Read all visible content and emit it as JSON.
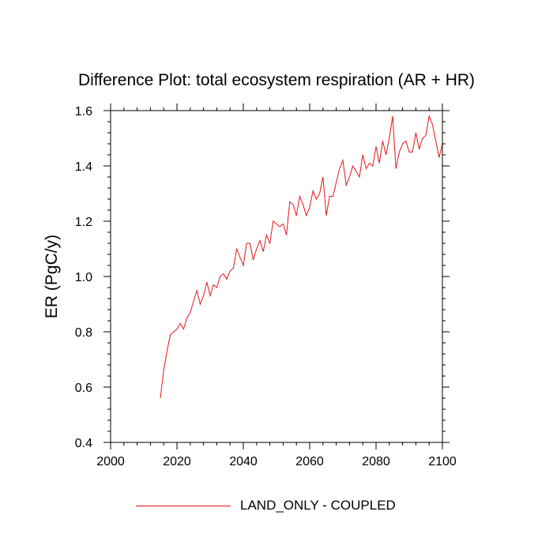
{
  "chart_data": {
    "type": "line",
    "title": "Difference Plot: total ecosystem respiration (AR + HR)",
    "xlabel": "",
    "ylabel": "ER  (PgC/y)",
    "xlim": [
      2000,
      2100
    ],
    "ylim": [
      0.4,
      1.6
    ],
    "xticks": [
      2000,
      2020,
      2040,
      2060,
      2080,
      2100
    ],
    "yticks": [
      0.4,
      0.6,
      0.8,
      1.0,
      1.2,
      1.4,
      1.6
    ],
    "ytick_labels": [
      "0.4",
      "0.6",
      "0.8",
      "1.0",
      "1.2",
      "1.4",
      "1.6"
    ],
    "legend": "bottom",
    "series": [
      {
        "name": "LAND_ONLY - COUPLED",
        "color": "#e8141b",
        "x": [
          2015,
          2016,
          2017,
          2018,
          2019,
          2020,
          2021,
          2022,
          2023,
          2024,
          2025,
          2026,
          2027,
          2028,
          2029,
          2030,
          2031,
          2032,
          2033,
          2034,
          2035,
          2036,
          2037,
          2038,
          2039,
          2040,
          2041,
          2042,
          2043,
          2044,
          2045,
          2046,
          2047,
          2048,
          2049,
          2050,
          2051,
          2052,
          2053,
          2054,
          2055,
          2056,
          2057,
          2058,
          2059,
          2060,
          2061,
          2062,
          2063,
          2064,
          2065,
          2066,
          2067,
          2068,
          2069,
          2070,
          2071,
          2072,
          2073,
          2074,
          2075,
          2076,
          2077,
          2078,
          2079,
          2080,
          2081,
          2082,
          2083,
          2084,
          2085,
          2086,
          2087,
          2088,
          2089,
          2090,
          2091,
          2092,
          2093,
          2094,
          2095,
          2096,
          2097,
          2098,
          2099,
          2100
        ],
        "values": [
          0.56,
          0.66,
          0.73,
          0.79,
          0.8,
          0.81,
          0.83,
          0.81,
          0.85,
          0.87,
          0.91,
          0.95,
          0.9,
          0.93,
          0.98,
          0.93,
          0.97,
          0.96,
          1.0,
          1.01,
          0.99,
          1.02,
          1.03,
          1.1,
          1.07,
          1.04,
          1.12,
          1.12,
          1.06,
          1.1,
          1.13,
          1.09,
          1.15,
          1.12,
          1.2,
          1.19,
          1.18,
          1.19,
          1.15,
          1.27,
          1.26,
          1.22,
          1.29,
          1.26,
          1.22,
          1.25,
          1.31,
          1.28,
          1.3,
          1.36,
          1.22,
          1.29,
          1.29,
          1.34,
          1.39,
          1.42,
          1.33,
          1.36,
          1.4,
          1.38,
          1.36,
          1.44,
          1.39,
          1.41,
          1.4,
          1.47,
          1.41,
          1.49,
          1.44,
          1.5,
          1.58,
          1.39,
          1.45,
          1.48,
          1.49,
          1.45,
          1.45,
          1.52,
          1.46,
          1.5,
          1.51,
          1.58,
          1.55,
          1.49,
          1.43,
          1.48
        ]
      }
    ]
  }
}
